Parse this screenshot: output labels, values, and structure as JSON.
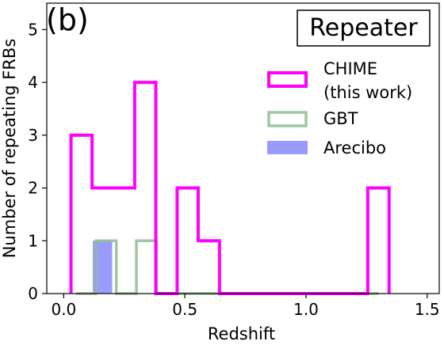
{
  "chart_data": {
    "type": "histogram",
    "panel_label": "(b)",
    "box_label": "Repeater",
    "xlabel": "Redshift",
    "ylabel": "Number of repeating FRBs",
    "xlim": [
      -0.07,
      1.55
    ],
    "ylim": [
      0,
      5.5
    ],
    "xticks": [
      0.0,
      0.5,
      1.0,
      1.5
    ],
    "xtick_labels": [
      "0.0",
      "0.5",
      "1.0",
      "1.5"
    ],
    "yticks": [
      0,
      1,
      2,
      3,
      4,
      5
    ],
    "ytick_labels": [
      "0",
      "1",
      "2",
      "3",
      "4",
      "5"
    ],
    "legend_position": "upper-right",
    "series": [
      {
        "name": "CHIME\n(this work)",
        "name_lines": [
          "CHIME",
          "(this work)"
        ],
        "style": "step",
        "color": "#ff00ff",
        "bin_edges": [
          0.03,
          0.117,
          0.205,
          0.293,
          0.38,
          0.468,
          0.555,
          0.643,
          0.73,
          0.818,
          0.905,
          0.993,
          1.08,
          1.168,
          1.255,
          1.343
        ],
        "counts": [
          3,
          2,
          2,
          4,
          0,
          2,
          1,
          0,
          0,
          0,
          0,
          0,
          0,
          0,
          2
        ]
      },
      {
        "name": "GBT",
        "name_lines": [
          "GBT"
        ],
        "style": "step",
        "color": "#8fbc8f",
        "bin_edges": [
          0.05,
          0.133,
          0.217,
          0.3,
          0.383,
          0.467,
          0.55,
          0.633,
          0.717,
          0.8,
          0.883,
          0.967,
          1.05,
          1.133,
          1.217,
          1.3
        ],
        "counts": [
          0,
          1,
          0,
          1,
          0,
          0,
          0,
          0,
          0,
          0,
          0,
          0,
          0,
          0,
          0
        ]
      },
      {
        "name": "Arecibo",
        "name_lines": [
          "Arecibo"
        ],
        "style": "filled",
        "color": "#6666ff",
        "bin_edges": [
          0.12,
          0.2
        ],
        "counts": [
          1
        ]
      }
    ]
  }
}
